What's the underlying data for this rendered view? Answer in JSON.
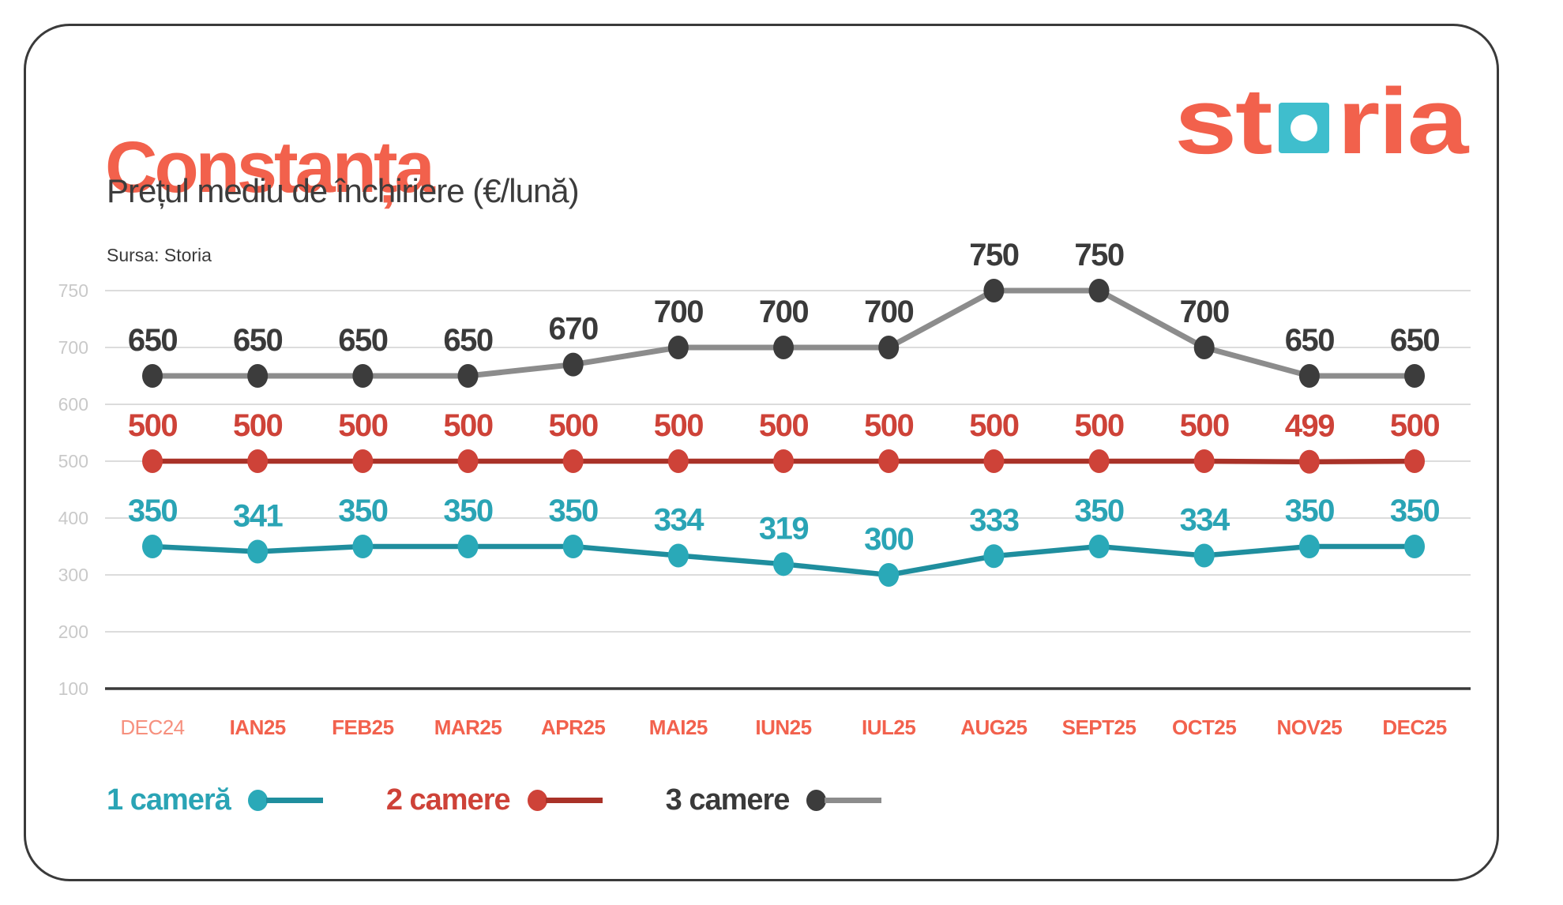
{
  "header": {
    "title": "Constanța",
    "subtitle": "Prețul mediu de închiriere (€/lună)",
    "source": "Sursa: Storia"
  },
  "logo": {
    "brand": "storia",
    "text_left": "st",
    "text_right": "ria",
    "orange": "#F2614C",
    "teal_square": "#3FBECD"
  },
  "colors": {
    "accent_orange": "#F2614C",
    "card_border": "#3A3A3A",
    "subtitle_text": "#3C3C3C",
    "background": "#FFFFFF"
  },
  "chart_data": {
    "type": "line",
    "title": "Prețul mediu de închiriere (€/lună)",
    "xlabel": "",
    "ylabel": "",
    "ylim": [
      100,
      750
    ],
    "grid": true,
    "legend_position": "bottom",
    "yticks": [
      100,
      200,
      300,
      400,
      500,
      600,
      700,
      750
    ],
    "axis_tick": 100,
    "grid_color": "#DCDCDC",
    "axis_color": "#3A3A3A",
    "ytick_color": "#C9C9C9",
    "xlabel_color": "#F2614D",
    "first_xlabel": {
      "color": "#F6907E",
      "weight": "400"
    },
    "categories": [
      "DEC24",
      "IAN25",
      "FEB25",
      "MAR25",
      "APR25",
      "MAI25",
      "IUN25",
      "IUL25",
      "AUG25",
      "SEPT25",
      "OCT25",
      "NOV25",
      "DEC25"
    ],
    "series": [
      {
        "id": "1-camera",
        "name": "1 cameră",
        "values": [
          350,
          341,
          350,
          350,
          350,
          334,
          319,
          300,
          333,
          350,
          334,
          350,
          350
        ],
        "line_color": "#1F8E9E",
        "dot_color": "#2AA9B8",
        "label_color": "#2AA4B5",
        "line_width": 6.5
      },
      {
        "id": "2-camere",
        "name": "2 camere",
        "values": [
          500,
          500,
          500,
          500,
          500,
          500,
          500,
          500,
          500,
          500,
          500,
          499,
          500
        ],
        "line_color": "#A93228",
        "dot_color": "#CE4238",
        "label_color": "#CE4238",
        "line_width": 6.5
      },
      {
        "id": "3-camere",
        "name": "3 camere",
        "values": [
          650,
          650,
          650,
          650,
          670,
          700,
          700,
          700,
          750,
          750,
          700,
          650,
          650
        ],
        "line_color": "#8C8C8C",
        "dot_color": "#3C3C3C",
        "label_color": "#3A3A3A",
        "line_width": 7
      }
    ]
  }
}
